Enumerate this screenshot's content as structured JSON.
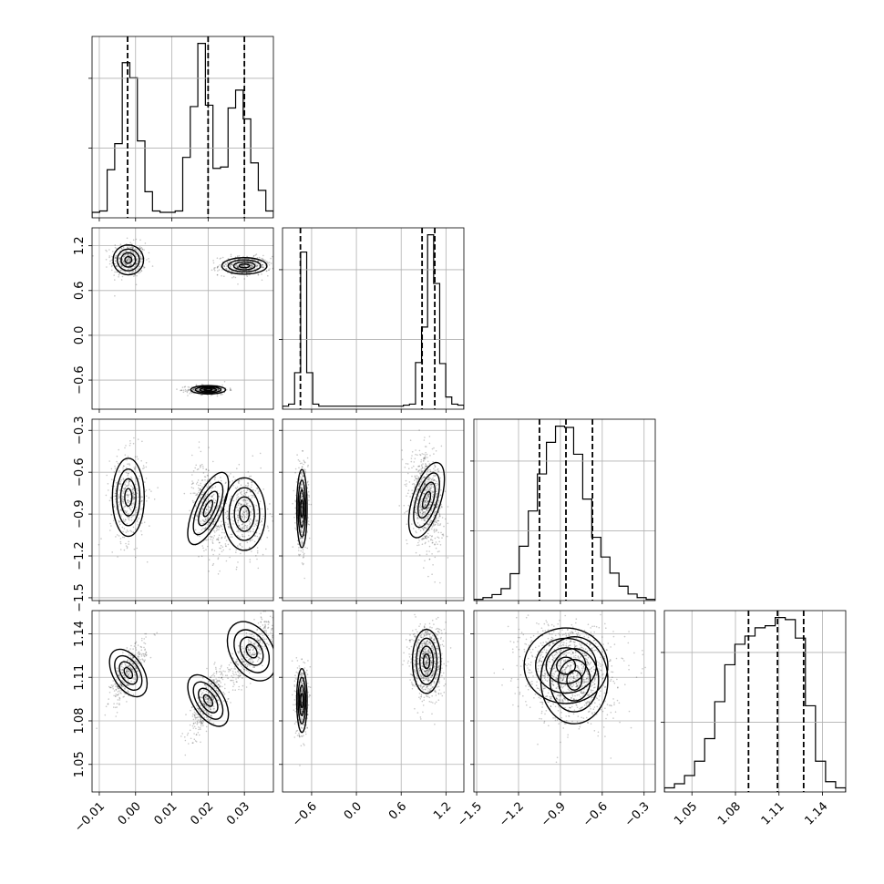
{
  "chart_data": {
    "type": "corner",
    "grid": true,
    "parameters": [
      {
        "range": [
          -0.012,
          0.038
        ],
        "ticks": [
          -0.01,
          0.0,
          0.01,
          0.02,
          0.03
        ],
        "tick_labels": [
          "−0.01",
          "0.00",
          "0.01",
          "0.02",
          "0.03"
        ]
      },
      {
        "range": [
          -0.99,
          1.44
        ],
        "ticks": [
          -0.6,
          0.0,
          0.6,
          1.2
        ],
        "tick_labels": [
          "−0.6",
          "0.0",
          "0.6",
          "1.2"
        ]
      },
      {
        "range": [
          -1.52,
          -0.22
        ],
        "ticks": [
          -1.5,
          -1.2,
          -0.9,
          -0.6,
          -0.3
        ],
        "tick_labels": [
          "−1.5",
          "−1.2",
          "−0.9",
          "−0.6",
          "−0.3"
        ]
      },
      {
        "range": [
          1.031,
          1.156
        ],
        "ticks": [
          1.05,
          1.08,
          1.11,
          1.14
        ],
        "tick_labels": [
          "1.05",
          "1.08",
          "1.11",
          "1.14"
        ]
      }
    ],
    "histograms": [
      {
        "param": 0,
        "quantiles": [
          -0.0022,
          0.02,
          0.03
        ],
        "counts": [
          0.4,
          0.5,
          3.5,
          5.4,
          11.3,
          10.2,
          5.6,
          1.9,
          0.5,
          0.4,
          0.4,
          0.5,
          4.4,
          8.1,
          12.7,
          8.2,
          3.6,
          3.7,
          8.0,
          9.3,
          7.2,
          4.0,
          2.0,
          0.5
        ]
      },
      {
        "param": 1,
        "quantiles": [
          -0.75,
          0.88,
          1.05
        ],
        "counts": [
          0.3,
          0.5,
          3.6,
          15.5,
          3.6,
          0.5,
          0.3,
          0.3,
          0.3,
          0.3,
          0.3,
          0.3,
          0.3,
          0.3,
          0.3,
          0.3,
          0.3,
          0.3,
          0.3,
          0.3,
          0.4,
          0.5,
          4.6,
          8.1,
          17.2,
          12.4,
          4.5,
          1.2,
          0.5,
          0.4
        ]
      },
      {
        "param": 2,
        "quantiles": [
          -1.05,
          -0.86,
          -0.67
        ],
        "counts": [
          0.2,
          0.5,
          1.0,
          2.0,
          4.5,
          9.1,
          15.0,
          21.2,
          26.5,
          29.2,
          29.0,
          24.5,
          17.0,
          10.6,
          7.3,
          4.6,
          2.4,
          1.1,
          0.5,
          0.2
        ]
      },
      {
        "param": 3,
        "quantiles": [
          1.089,
          1.109,
          1.127
        ],
        "counts": [
          0.2,
          0.4,
          0.8,
          1.5,
          2.6,
          4.4,
          6.2,
          7.2,
          7.6,
          8.0,
          8.1,
          8.5,
          8.4,
          7.5,
          4.2,
          1.5,
          0.5,
          0.2
        ]
      }
    ],
    "joint_components": [
      {
        "x": 0,
        "y": 1,
        "blobs": [
          {
            "w": 0.33,
            "mx": -0.002,
            "my": 1.01,
            "sx": 0.0021,
            "sy": 0.1,
            "rho": 0
          },
          {
            "w": 0.33,
            "mx": 0.03,
            "my": 0.93,
            "sx": 0.0031,
            "sy": 0.055,
            "rho": 0
          },
          {
            "w": 0.34,
            "mx": 0.02,
            "my": -0.73,
            "sx": 0.0024,
            "sy": 0.028,
            "rho": 0
          }
        ]
      },
      {
        "x": 0,
        "y": 2,
        "blobs": [
          {
            "w": 0.33,
            "mx": -0.002,
            "my": -0.78,
            "sx": 0.0022,
            "sy": 0.14,
            "rho": 0
          },
          {
            "w": 0.34,
            "mx": 0.02,
            "my": -0.86,
            "sx": 0.0019,
            "sy": 0.14,
            "rho": -0.3
          },
          {
            "w": 0.33,
            "mx": 0.03,
            "my": -0.9,
            "sx": 0.0029,
            "sy": 0.13,
            "rho": 0
          }
        ]
      },
      {
        "x": 0,
        "y": 3,
        "blobs": [
          {
            "w": 0.33,
            "mx": -0.002,
            "my": 1.113,
            "sx": 0.0021,
            "sy": 0.009,
            "rho": 0.75
          },
          {
            "w": 0.34,
            "mx": 0.02,
            "my": 1.094,
            "sx": 0.0021,
            "sy": 0.01,
            "rho": 0.75
          },
          {
            "w": 0.33,
            "mx": 0.032,
            "my": 1.128,
            "sx": 0.0029,
            "sy": 0.011,
            "rho": 0.8
          }
        ]
      },
      {
        "x": 1,
        "y": 2,
        "blobs": [
          {
            "w": 0.34,
            "mx": -0.73,
            "my": -0.86,
            "sx": 0.035,
            "sy": 0.14,
            "rho": 0
          },
          {
            "w": 0.66,
            "mx": 0.94,
            "my": -0.8,
            "sx": 0.095,
            "sy": 0.14,
            "rho": -0.2
          }
        ]
      },
      {
        "x": 1,
        "y": 3,
        "blobs": [
          {
            "w": 0.34,
            "mx": -0.73,
            "my": 1.094,
            "sx": 0.035,
            "sy": 0.011,
            "rho": 0
          },
          {
            "w": 0.66,
            "mx": 0.94,
            "my": 1.121,
            "sx": 0.095,
            "sy": 0.011,
            "rho": 0
          }
        ]
      },
      {
        "x": 2,
        "y": 3,
        "blobs": [
          {
            "w": 0.6,
            "mx": -0.86,
            "my": 1.118,
            "sx": 0.15,
            "sy": 0.013,
            "rho": 0
          },
          {
            "w": 0.4,
            "mx": -0.8,
            "my": 1.108,
            "sx": 0.12,
            "sy": 0.015,
            "rho": 0
          }
        ]
      }
    ]
  }
}
